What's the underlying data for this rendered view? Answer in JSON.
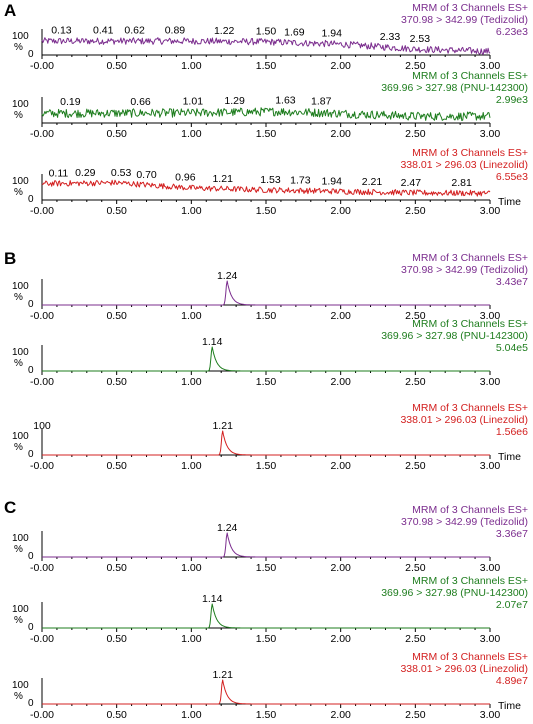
{
  "chart_data": [
    {
      "panel": "A",
      "x_ticks": [
        "-0.00",
        "0.50",
        "1.00",
        "1.50",
        "2.00",
        "2.50",
        "3.00"
      ],
      "xlim": [
        0,
        3
      ],
      "traces": [
        {
          "type": "line",
          "color": "#7b2d8e",
          "info": [
            "MRM of 3 Channels ES+",
            "370.98 > 342.99 (Tedizolid)",
            "6.23e3"
          ],
          "y_label": [
            "100",
            "%",
            "0"
          ],
          "peak_labels": [
            {
              "x": 0.13,
              "text": "0.13"
            },
            {
              "x": 0.41,
              "text": "0.41"
            },
            {
              "x": 0.62,
              "text": "0.62"
            },
            {
              "x": 0.89,
              "text": "0.89"
            },
            {
              "x": 1.22,
              "text": "1.22"
            },
            {
              "x": 1.5,
              "text": "1.50"
            },
            {
              "x": 1.69,
              "text": "1.69"
            },
            {
              "x": 1.94,
              "text": "1.94"
            },
            {
              "x": 2.33,
              "text": "2.33"
            },
            {
              "x": 2.53,
              "text": "2.53"
            }
          ],
          "noise": true,
          "baseline": [
            [
              0,
              58
            ],
            [
              1.0,
              58
            ],
            [
              1.5,
              55
            ],
            [
              2.0,
              45
            ],
            [
              2.5,
              25
            ],
            [
              3.0,
              15
            ]
          ],
          "amplitude": 14
        },
        {
          "type": "line",
          "color": "#1e7d1e",
          "info": [
            "MRM of 3 Channels ES+",
            "369.96 > 327.98 (PNU-142300)",
            "2.99e3"
          ],
          "y_label": [
            "100",
            "%",
            ""
          ],
          "peak_labels": [
            {
              "x": 0.19,
              "text": "0.19"
            },
            {
              "x": 0.66,
              "text": "0.66"
            },
            {
              "x": 1.01,
              "text": "1.01"
            },
            {
              "x": 1.29,
              "text": "1.29"
            },
            {
              "x": 1.63,
              "text": "1.63"
            },
            {
              "x": 1.87,
              "text": "1.87"
            }
          ],
          "noise": true,
          "baseline": [
            [
              0,
              40
            ],
            [
              1.0,
              42
            ],
            [
              1.6,
              48
            ],
            [
              2.0,
              40
            ],
            [
              2.5,
              28
            ],
            [
              3.0,
              28
            ]
          ],
          "amplitude": 18
        },
        {
          "type": "line",
          "color": "#d32020",
          "info": [
            "MRM of 3 Channels ES+",
            "338.01 > 296.03 (Linezolid)",
            "6.55e3"
          ],
          "y_label": [
            "100",
            "%",
            "0"
          ],
          "x_axis_label": "Time",
          "peak_labels": [
            {
              "x": 0.11,
              "text": "0.11"
            },
            {
              "x": 0.29,
              "text": "0.29"
            },
            {
              "x": 0.53,
              "text": "0.53"
            },
            {
              "x": 0.7,
              "text": "0.70"
            },
            {
              "x": 0.96,
              "text": "0.96"
            },
            {
              "x": 1.21,
              "text": "1.21"
            },
            {
              "x": 1.53,
              "text": "1.53"
            },
            {
              "x": 1.73,
              "text": "1.73"
            },
            {
              "x": 1.94,
              "text": "1.94"
            },
            {
              "x": 2.21,
              "text": "2.21"
            },
            {
              "x": 2.47,
              "text": "2.47"
            },
            {
              "x": 2.81,
              "text": "2.81"
            }
          ],
          "noise": true,
          "baseline": [
            [
              0,
              68
            ],
            [
              0.5,
              72
            ],
            [
              1.0,
              50
            ],
            [
              1.5,
              42
            ],
            [
              2.0,
              36
            ],
            [
              2.5,
              30
            ],
            [
              3.0,
              28
            ]
          ],
          "amplitude": 12
        }
      ]
    },
    {
      "panel": "B",
      "x_ticks": [
        "-0.00",
        "0.50",
        "1.00",
        "1.50",
        "2.00",
        "2.50",
        "3.00"
      ],
      "xlim": [
        0,
        3
      ],
      "traces": [
        {
          "type": "line",
          "color": "#7b2d8e",
          "info": [
            "MRM of 3 Channels ES+",
            "370.98 > 342.99 (Tedizolid)",
            "3.43e7"
          ],
          "y_label": [
            "100",
            "%",
            "0"
          ],
          "peak_labels": [
            {
              "x": 1.24,
              "text": "1.24"
            }
          ],
          "noise": false,
          "peak": {
            "rt": 1.24,
            "height": 100
          }
        },
        {
          "type": "line",
          "color": "#1e7d1e",
          "info": [
            "MRM of 3 Channels ES+",
            "369.96 > 327.98 (PNU-142300)",
            "5.04e5"
          ],
          "y_label": [
            "100",
            "%",
            "0"
          ],
          "peak_labels": [
            {
              "x": 1.14,
              "text": "1.14"
            }
          ],
          "noise": false,
          "peak": {
            "rt": 1.14,
            "height": 100
          }
        },
        {
          "type": "line",
          "color": "#d32020",
          "info": [
            "MRM of 3 Channels ES+",
            "338.01 > 296.03 (Linezolid)",
            "1.56e6"
          ],
          "y_label": [
            "100",
            "%",
            "0"
          ],
          "x_axis_label": "Time",
          "peak_labels": [
            {
              "x": 0.0,
              "text": "100"
            },
            {
              "x": 1.21,
              "text": "1.21"
            }
          ],
          "noise": false,
          "peak": {
            "rt": 1.21,
            "height": 100
          }
        }
      ]
    },
    {
      "panel": "C",
      "x_ticks": [
        "-0.00",
        "0.50",
        "1.00",
        "1.50",
        "2.00",
        "2.50",
        "3.00"
      ],
      "xlim": [
        0,
        3
      ],
      "traces": [
        {
          "type": "line",
          "color": "#7b2d8e",
          "info": [
            "MRM of 3 Channels ES+",
            "370.98 > 342.99 (Tedizolid)",
            "3.36e7"
          ],
          "y_label": [
            "100",
            "%",
            "0"
          ],
          "peak_labels": [
            {
              "x": 1.24,
              "text": "1.24"
            }
          ],
          "noise": false,
          "peak": {
            "rt": 1.24,
            "height": 100
          }
        },
        {
          "type": "line",
          "color": "#1e7d1e",
          "info": [
            "MRM of 3 Channels ES+",
            "369.96 > 327.98 (PNU-142300)",
            "2.07e7"
          ],
          "y_label": [
            "100",
            "%",
            "0"
          ],
          "peak_labels": [
            {
              "x": 1.14,
              "text": "1.14"
            }
          ],
          "noise": false,
          "peak": {
            "rt": 1.14,
            "height": 100
          }
        },
        {
          "type": "line",
          "color": "#d32020",
          "info": [
            "MRM of 3 Channels ES+",
            "338.01 > 296.03 (Linezolid)",
            "4.89e7"
          ],
          "y_label": [
            "100",
            "%",
            "0"
          ],
          "x_axis_label": "Time",
          "peak_labels": [
            {
              "x": 1.21,
              "text": "1.21"
            }
          ],
          "noise": false,
          "peak": {
            "rt": 1.21,
            "height": 100
          }
        }
      ]
    }
  ]
}
